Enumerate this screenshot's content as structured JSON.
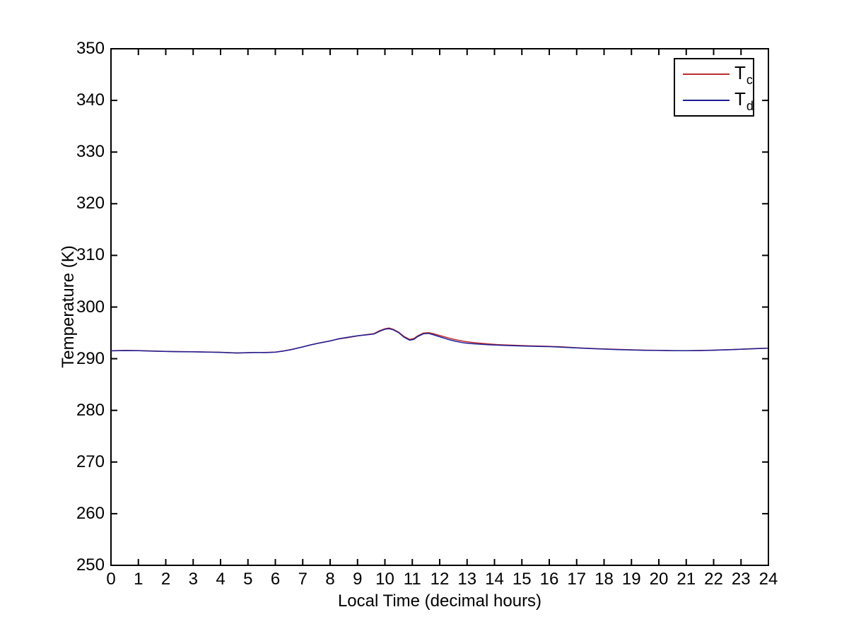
{
  "figure": {
    "background": "#ffffff",
    "frame_color": "#000000"
  },
  "chart_data": {
    "type": "line",
    "title": "",
    "xlabel": "Local Time (decimal hours)",
    "ylabel": "Temperature (K)",
    "xlim": [
      0,
      24
    ],
    "ylim": [
      250,
      350
    ],
    "xticks": [
      0,
      1,
      2,
      3,
      4,
      5,
      6,
      7,
      8,
      9,
      10,
      11,
      12,
      13,
      14,
      15,
      16,
      17,
      18,
      19,
      20,
      21,
      22,
      23,
      24
    ],
    "yticks": [
      250,
      260,
      270,
      280,
      290,
      300,
      310,
      320,
      330,
      340,
      350
    ],
    "grid": false,
    "legend_position": "top-right",
    "series": [
      {
        "name": "T_c",
        "legend_main": "T",
        "legend_sub": "c",
        "color": "#be2b2b",
        "points": [
          [
            0,
            291.55
          ],
          [
            0.5,
            291.6
          ],
          [
            1,
            291.58
          ],
          [
            1.5,
            291.5
          ],
          [
            2,
            291.42
          ],
          [
            2.5,
            291.38
          ],
          [
            3,
            291.35
          ],
          [
            3.5,
            291.3
          ],
          [
            4,
            291.25
          ],
          [
            4.3,
            291.18
          ],
          [
            4.6,
            291.12
          ],
          [
            5,
            291.18
          ],
          [
            5.3,
            291.22
          ],
          [
            5.6,
            291.2
          ],
          [
            6,
            291.28
          ],
          [
            6.3,
            291.5
          ],
          [
            6.6,
            291.8
          ],
          [
            7,
            292.3
          ],
          [
            7.3,
            292.7
          ],
          [
            7.6,
            293.05
          ],
          [
            8,
            293.45
          ],
          [
            8.3,
            293.8
          ],
          [
            8.6,
            294.05
          ],
          [
            9,
            294.4
          ],
          [
            9.3,
            294.65
          ],
          [
            9.6,
            294.85
          ],
          [
            9.8,
            295.4
          ],
          [
            10,
            295.8
          ],
          [
            10.15,
            295.95
          ],
          [
            10.3,
            295.7
          ],
          [
            10.5,
            295.15
          ],
          [
            10.7,
            294.3
          ],
          [
            10.9,
            293.75
          ],
          [
            11.05,
            293.9
          ],
          [
            11.2,
            294.45
          ],
          [
            11.4,
            294.95
          ],
          [
            11.6,
            295.05
          ],
          [
            11.8,
            294.8
          ],
          [
            12,
            294.5
          ],
          [
            12.3,
            294.05
          ],
          [
            12.6,
            293.65
          ],
          [
            12.9,
            293.35
          ],
          [
            13.2,
            293.15
          ],
          [
            13.5,
            292.98
          ],
          [
            13.8,
            292.85
          ],
          [
            14.1,
            292.74
          ],
          [
            14.5,
            292.64
          ],
          [
            15,
            292.54
          ],
          [
            15.5,
            292.46
          ],
          [
            16,
            292.4
          ],
          [
            16.5,
            292.28
          ],
          [
            17,
            292.12
          ],
          [
            17.5,
            292.0
          ],
          [
            18,
            291.9
          ],
          [
            18.5,
            291.8
          ],
          [
            19,
            291.72
          ],
          [
            19.5,
            291.66
          ],
          [
            20,
            291.62
          ],
          [
            20.5,
            291.58
          ],
          [
            21,
            291.56
          ],
          [
            21.5,
            291.6
          ],
          [
            22,
            291.66
          ],
          [
            22.5,
            291.74
          ],
          [
            23,
            291.84
          ],
          [
            23.5,
            291.95
          ],
          [
            24,
            292.05
          ]
        ]
      },
      {
        "name": "T_d",
        "legend_main": "T",
        "legend_sub": "d",
        "color": "#1e1e96",
        "points": [
          [
            0,
            291.52
          ],
          [
            0.5,
            291.57
          ],
          [
            1,
            291.55
          ],
          [
            1.5,
            291.47
          ],
          [
            2,
            291.4
          ],
          [
            2.5,
            291.36
          ],
          [
            3,
            291.33
          ],
          [
            3.5,
            291.28
          ],
          [
            4,
            291.23
          ],
          [
            4.3,
            291.16
          ],
          [
            4.6,
            291.1
          ],
          [
            5,
            291.16
          ],
          [
            5.3,
            291.2
          ],
          [
            5.6,
            291.18
          ],
          [
            6,
            291.26
          ],
          [
            6.3,
            291.48
          ],
          [
            6.6,
            291.78
          ],
          [
            7,
            292.28
          ],
          [
            7.3,
            292.68
          ],
          [
            7.6,
            293.03
          ],
          [
            8,
            293.43
          ],
          [
            8.3,
            293.85
          ],
          [
            8.6,
            294.12
          ],
          [
            9,
            294.45
          ],
          [
            9.3,
            294.6
          ],
          [
            9.6,
            294.78
          ],
          [
            9.8,
            295.3
          ],
          [
            10,
            295.7
          ],
          [
            10.15,
            295.82
          ],
          [
            10.3,
            295.6
          ],
          [
            10.5,
            295.05
          ],
          [
            10.7,
            294.15
          ],
          [
            10.9,
            293.58
          ],
          [
            11.05,
            293.72
          ],
          [
            11.2,
            294.3
          ],
          [
            11.4,
            294.82
          ],
          [
            11.6,
            294.9
          ],
          [
            11.8,
            294.58
          ],
          [
            12,
            294.25
          ],
          [
            12.3,
            293.75
          ],
          [
            12.6,
            293.35
          ],
          [
            12.9,
            293.05
          ],
          [
            13.2,
            292.9
          ],
          [
            13.5,
            292.8
          ],
          [
            13.8,
            292.7
          ],
          [
            14.1,
            292.62
          ],
          [
            14.5,
            292.54
          ],
          [
            15,
            292.46
          ],
          [
            15.5,
            292.4
          ],
          [
            16,
            292.34
          ],
          [
            16.5,
            292.22
          ],
          [
            17,
            292.08
          ],
          [
            17.5,
            291.96
          ],
          [
            18,
            291.86
          ],
          [
            18.5,
            291.76
          ],
          [
            19,
            291.69
          ],
          [
            19.5,
            291.63
          ],
          [
            20,
            291.6
          ],
          [
            20.5,
            291.56
          ],
          [
            21,
            291.54
          ],
          [
            21.5,
            291.58
          ],
          [
            22,
            291.64
          ],
          [
            22.5,
            291.72
          ],
          [
            23,
            291.82
          ],
          [
            23.5,
            291.93
          ],
          [
            24,
            292.02
          ]
        ]
      }
    ]
  }
}
